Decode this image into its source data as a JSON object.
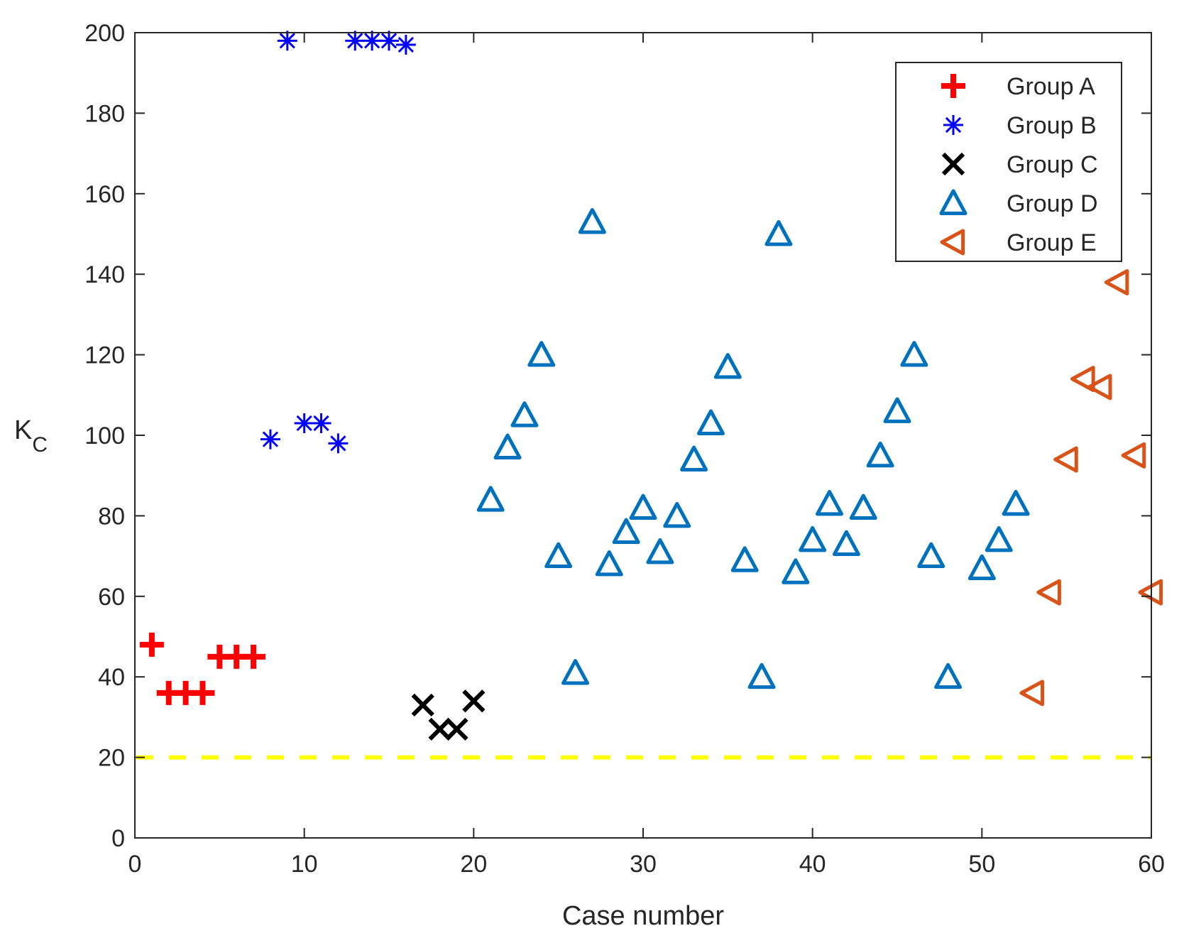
{
  "chart_data": {
    "type": "scatter",
    "title": "",
    "xlabel": "Case number",
    "ylabel": "K",
    "ylabel_subscript": "C",
    "xlim": [
      0,
      60
    ],
    "ylim": [
      0,
      200
    ],
    "xticks": [
      0,
      10,
      20,
      30,
      40,
      50,
      60
    ],
    "yticks": [
      0,
      20,
      40,
      60,
      80,
      100,
      120,
      140,
      160,
      180,
      200
    ],
    "grid": false,
    "legend_position": "top-right",
    "threshold_line": {
      "y": 20,
      "color": "#ffff00",
      "style": "dashed"
    },
    "series": [
      {
        "name": "Group A",
        "marker": "plus",
        "color": "#ff0000",
        "points": [
          [
            1,
            48
          ],
          [
            2,
            36
          ],
          [
            3,
            36
          ],
          [
            4,
            36
          ],
          [
            5,
            45
          ],
          [
            6,
            45
          ],
          [
            7,
            45
          ]
        ]
      },
      {
        "name": "Group B",
        "marker": "asterisk",
        "color": "#0000ff",
        "points": [
          [
            8,
            99
          ],
          [
            9,
            198
          ],
          [
            10,
            103
          ],
          [
            11,
            103
          ],
          [
            12,
            98
          ],
          [
            13,
            198
          ],
          [
            14,
            198
          ],
          [
            15,
            198
          ],
          [
            16,
            197
          ]
        ]
      },
      {
        "name": "Group C",
        "marker": "x",
        "color": "#000000",
        "points": [
          [
            17,
            33
          ],
          [
            18,
            27
          ],
          [
            19,
            27
          ],
          [
            20,
            34
          ]
        ]
      },
      {
        "name": "Group D",
        "marker": "triangle-up",
        "color": "#0072bd",
        "points": [
          [
            21,
            84
          ],
          [
            22,
            97
          ],
          [
            23,
            105
          ],
          [
            24,
            120
          ],
          [
            25,
            70
          ],
          [
            26,
            41
          ],
          [
            27,
            153
          ],
          [
            28,
            68
          ],
          [
            29,
            76
          ],
          [
            30,
            82
          ],
          [
            31,
            71
          ],
          [
            32,
            80
          ],
          [
            33,
            94
          ],
          [
            34,
            103
          ],
          [
            35,
            117
          ],
          [
            36,
            69
          ],
          [
            37,
            40
          ],
          [
            38,
            150
          ],
          [
            39,
            66
          ],
          [
            40,
            74
          ],
          [
            41,
            83
          ],
          [
            42,
            73
          ],
          [
            43,
            82
          ],
          [
            44,
            95
          ],
          [
            45,
            106
          ],
          [
            46,
            120
          ],
          [
            47,
            70
          ],
          [
            48,
            40
          ],
          [
            50,
            67
          ],
          [
            51,
            74
          ],
          [
            52,
            83
          ]
        ]
      },
      {
        "name": "Group E",
        "marker": "triangle-left",
        "color": "#d95319",
        "points": [
          [
            53,
            36
          ],
          [
            54,
            61
          ],
          [
            55,
            94
          ],
          [
            56,
            114
          ],
          [
            57,
            112
          ],
          [
            58,
            138
          ],
          [
            59,
            95
          ],
          [
            60,
            61
          ]
        ]
      }
    ]
  }
}
